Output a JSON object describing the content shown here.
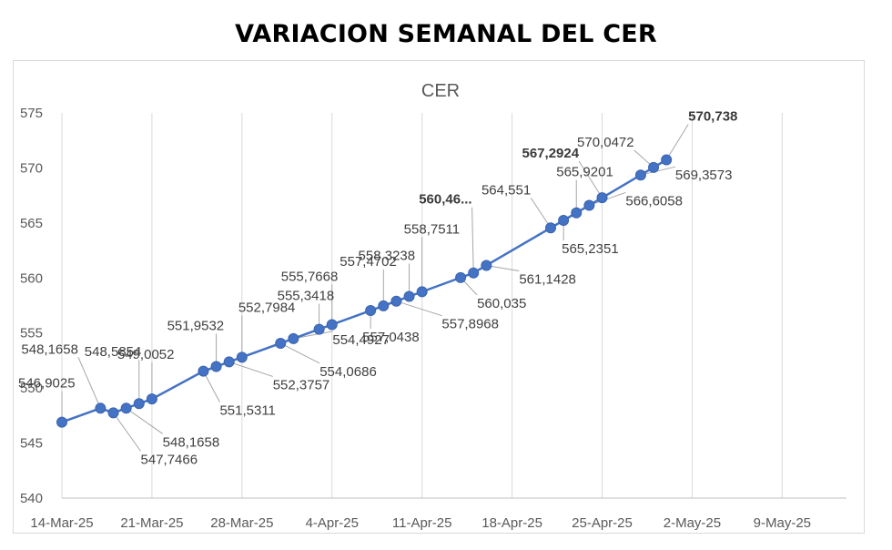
{
  "title": "VARIACION SEMANAL DEL CER",
  "chart_data": {
    "type": "line",
    "title": "CER",
    "xlabel": "",
    "ylabel": "",
    "ylim": [
      540,
      575
    ],
    "yticks": [
      "540",
      "545",
      "550",
      "555",
      "560",
      "565",
      "570",
      "575"
    ],
    "xticks": [
      "14-Mar-25",
      "21-Mar-25",
      "28-Mar-25",
      "4-Apr-25",
      "11-Apr-25",
      "18-Apr-25",
      "25-Apr-25",
      "2-May-25",
      "9-May-25"
    ],
    "xlim": [
      "2025-03-14",
      "2025-05-14"
    ],
    "grid": "vertical",
    "line_color": "#4472c4",
    "series": [
      {
        "points": [
          {
            "date": "2025-03-14",
            "value": 546.9025,
            "label": "546,9025"
          },
          {
            "date": "2025-03-17",
            "value": 548.1658,
            "label": "548,1658"
          },
          {
            "date": "2025-03-18",
            "value": 547.7466,
            "label": "547,7466"
          },
          {
            "date": "2025-03-19",
            "value": 548.1658,
            "label": "548,1658"
          },
          {
            "date": "2025-03-20",
            "value": 548.5854,
            "label": "548,5854"
          },
          {
            "date": "2025-03-21",
            "value": 549.0052,
            "label": "549,0052"
          },
          {
            "date": "2025-03-25",
            "value": 551.5311,
            "label": "551,5311"
          },
          {
            "date": "2025-03-26",
            "value": 551.9532,
            "label": "551,9532"
          },
          {
            "date": "2025-03-27",
            "value": 552.3757,
            "label": "552,3757"
          },
          {
            "date": "2025-03-28",
            "value": 552.7984,
            "label": "552,7984"
          },
          {
            "date": "2025-03-31",
            "value": 554.0686,
            "label": "554,0686"
          },
          {
            "date": "2025-04-01",
            "value": 554.4927,
            "label": "554,4927"
          },
          {
            "date": "2025-04-03",
            "value": 555.3418,
            "label": "555,3418"
          },
          {
            "date": "2025-04-04",
            "value": 555.7668,
            "label": "555,7668"
          },
          {
            "date": "2025-04-07",
            "value": 557.0438,
            "label": "557,0438"
          },
          {
            "date": "2025-04-08",
            "value": 557.4702,
            "label": "557,4702"
          },
          {
            "date": "2025-04-09",
            "value": 557.8968,
            "label": "557,8968"
          },
          {
            "date": "2025-04-10",
            "value": 558.3238,
            "label": "558,3238"
          },
          {
            "date": "2025-04-11",
            "value": 558.7511,
            "label": "558,7511"
          },
          {
            "date": "2025-04-14",
            "value": 560.035,
            "label": "560,035"
          },
          {
            "date": "2025-04-15",
            "value": 560.46,
            "label": "560,46..."
          },
          {
            "date": "2025-04-16",
            "value": 561.1428,
            "label": "561,1428"
          },
          {
            "date": "2025-04-21",
            "value": 564.551,
            "label": "564,551"
          },
          {
            "date": "2025-04-22",
            "value": 565.2351,
            "label": "565,2351"
          },
          {
            "date": "2025-04-23",
            "value": 565.9201,
            "label": "565,9201"
          },
          {
            "date": "2025-04-24",
            "value": 566.6058,
            "label": "566,6058"
          },
          {
            "date": "2025-04-25",
            "value": 567.2924,
            "label": "567,2924"
          },
          {
            "date": "2025-04-28",
            "value": 569.3573,
            "label": "569,3573"
          },
          {
            "date": "2025-04-29",
            "value": 570.0472,
            "label": "570,0472"
          },
          {
            "date": "2025-04-30",
            "value": 570.738,
            "label": "570,738"
          }
        ]
      }
    ]
  }
}
